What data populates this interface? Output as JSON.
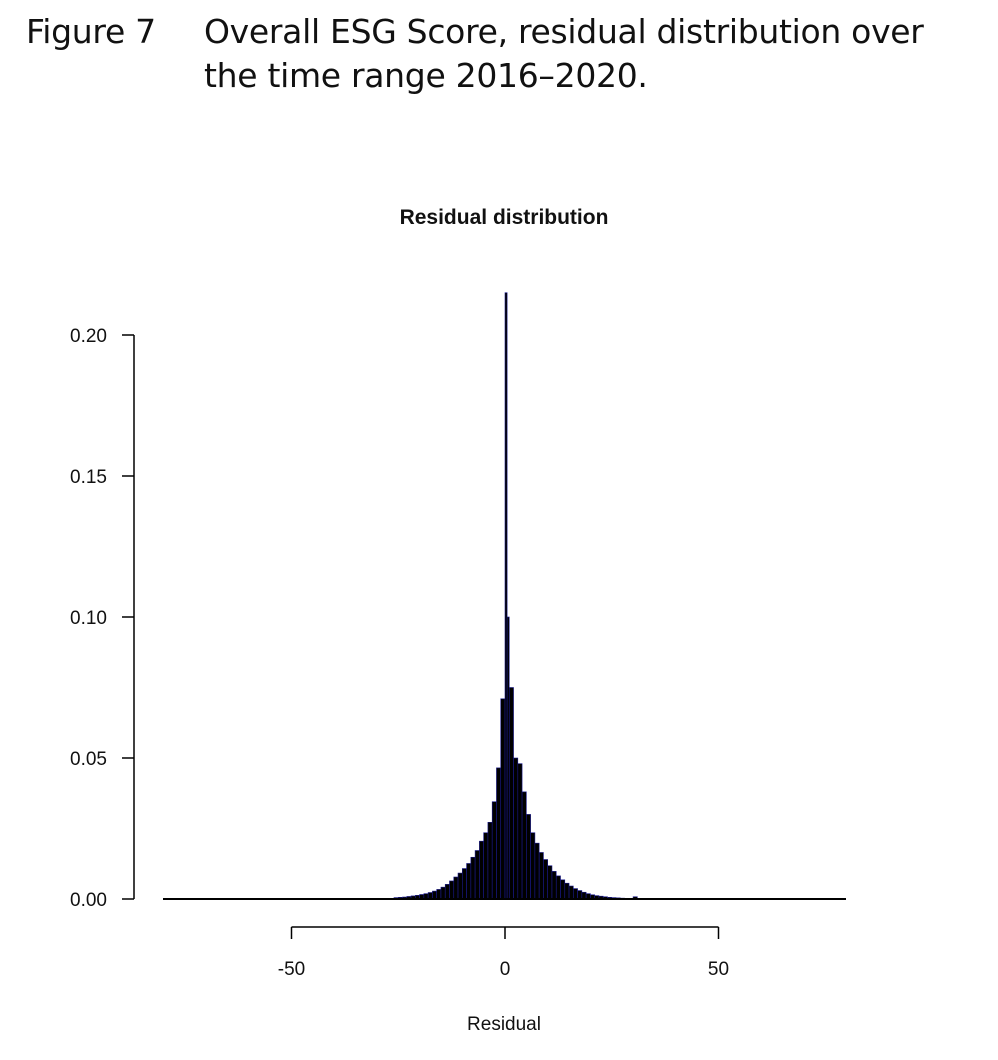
{
  "caption": {
    "label": "Figure 7",
    "text": "Overall ESG Score, residual distribution over the time range 2016–2020."
  },
  "chart_data": {
    "type": "bar",
    "title": "Residual distribution",
    "xlabel": "Residual",
    "ylabel": "",
    "xlim": [
      -80,
      80
    ],
    "ylim": [
      0,
      0.22
    ],
    "xticks": [
      -50,
      0,
      50
    ],
    "xtick_labels": [
      "-50",
      "0",
      "50"
    ],
    "yticks": [
      0.0,
      0.05,
      0.1,
      0.15,
      0.2
    ],
    "ytick_labels": [
      "0.00",
      "0.05",
      "0.10",
      "0.15",
      "0.20"
    ],
    "grid": false,
    "legend": "none",
    "bar_color": "#000000",
    "bar_edge_color": "#1a1a8c",
    "bin_width": 1,
    "bins": [
      {
        "x0": -26,
        "x1": -25,
        "density": 0.0005
      },
      {
        "x0": -25,
        "x1": -24,
        "density": 0.0006
      },
      {
        "x0": -24,
        "x1": -23,
        "density": 0.0007
      },
      {
        "x0": -23,
        "x1": -22,
        "density": 0.0009
      },
      {
        "x0": -22,
        "x1": -21,
        "density": 0.0011
      },
      {
        "x0": -21,
        "x1": -20,
        "density": 0.0013
      },
      {
        "x0": -20,
        "x1": -19,
        "density": 0.0016
      },
      {
        "x0": -19,
        "x1": -18,
        "density": 0.0019
      },
      {
        "x0": -18,
        "x1": -17,
        "density": 0.0023
      },
      {
        "x0": -17,
        "x1": -16,
        "density": 0.0028
      },
      {
        "x0": -16,
        "x1": -15,
        "density": 0.0034
      },
      {
        "x0": -15,
        "x1": -14,
        "density": 0.0042
      },
      {
        "x0": -14,
        "x1": -13,
        "density": 0.0052
      },
      {
        "x0": -13,
        "x1": -12,
        "density": 0.0064
      },
      {
        "x0": -12,
        "x1": -11,
        "density": 0.0078
      },
      {
        "x0": -11,
        "x1": -10,
        "density": 0.0092
      },
      {
        "x0": -10,
        "x1": -9,
        "density": 0.0108
      },
      {
        "x0": -9,
        "x1": -8,
        "density": 0.0126
      },
      {
        "x0": -8,
        "x1": -7,
        "density": 0.0148
      },
      {
        "x0": -7,
        "x1": -6,
        "density": 0.0172
      },
      {
        "x0": -6,
        "x1": -5,
        "density": 0.0205
      },
      {
        "x0": -5,
        "x1": -4,
        "density": 0.0235
      },
      {
        "x0": -4,
        "x1": -3,
        "density": 0.0272
      },
      {
        "x0": -3,
        "x1": -2,
        "density": 0.0345
      },
      {
        "x0": -2,
        "x1": -1,
        "density": 0.0465
      },
      {
        "x0": -1,
        "x1": 0,
        "density": 0.071
      },
      {
        "x0": 0,
        "x1": 0.5,
        "density": 0.215
      },
      {
        "x0": 0.5,
        "x1": 1,
        "density": 0.1
      },
      {
        "x0": 1,
        "x1": 2,
        "density": 0.075
      },
      {
        "x0": 2,
        "x1": 3,
        "density": 0.05
      },
      {
        "x0": 3,
        "x1": 4,
        "density": 0.048
      },
      {
        "x0": 4,
        "x1": 5,
        "density": 0.038
      },
      {
        "x0": 5,
        "x1": 6,
        "density": 0.03
      },
      {
        "x0": 6,
        "x1": 7,
        "density": 0.0235
      },
      {
        "x0": 7,
        "x1": 8,
        "density": 0.0198
      },
      {
        "x0": 8,
        "x1": 9,
        "density": 0.0165
      },
      {
        "x0": 9,
        "x1": 10,
        "density": 0.014
      },
      {
        "x0": 10,
        "x1": 11,
        "density": 0.0118
      },
      {
        "x0": 11,
        "x1": 12,
        "density": 0.0098
      },
      {
        "x0": 12,
        "x1": 13,
        "density": 0.0082
      },
      {
        "x0": 13,
        "x1": 14,
        "density": 0.0068
      },
      {
        "x0": 14,
        "x1": 15,
        "density": 0.0056
      },
      {
        "x0": 15,
        "x1": 16,
        "density": 0.0046
      },
      {
        "x0": 16,
        "x1": 17,
        "density": 0.0037
      },
      {
        "x0": 17,
        "x1": 18,
        "density": 0.003
      },
      {
        "x0": 18,
        "x1": 19,
        "density": 0.0024
      },
      {
        "x0": 19,
        "x1": 20,
        "density": 0.0019
      },
      {
        "x0": 20,
        "x1": 21,
        "density": 0.0015
      },
      {
        "x0": 21,
        "x1": 22,
        "density": 0.0012
      },
      {
        "x0": 22,
        "x1": 23,
        "density": 0.001
      },
      {
        "x0": 23,
        "x1": 24,
        "density": 0.0008
      },
      {
        "x0": 24,
        "x1": 25,
        "density": 0.0006
      },
      {
        "x0": 25,
        "x1": 26,
        "density": 0.0005
      },
      {
        "x0": 26,
        "x1": 27,
        "density": 0.0004
      },
      {
        "x0": 27,
        "x1": 28,
        "density": 0.0003
      },
      {
        "x0": 30,
        "x1": 31,
        "density": 0.0008
      }
    ]
  }
}
